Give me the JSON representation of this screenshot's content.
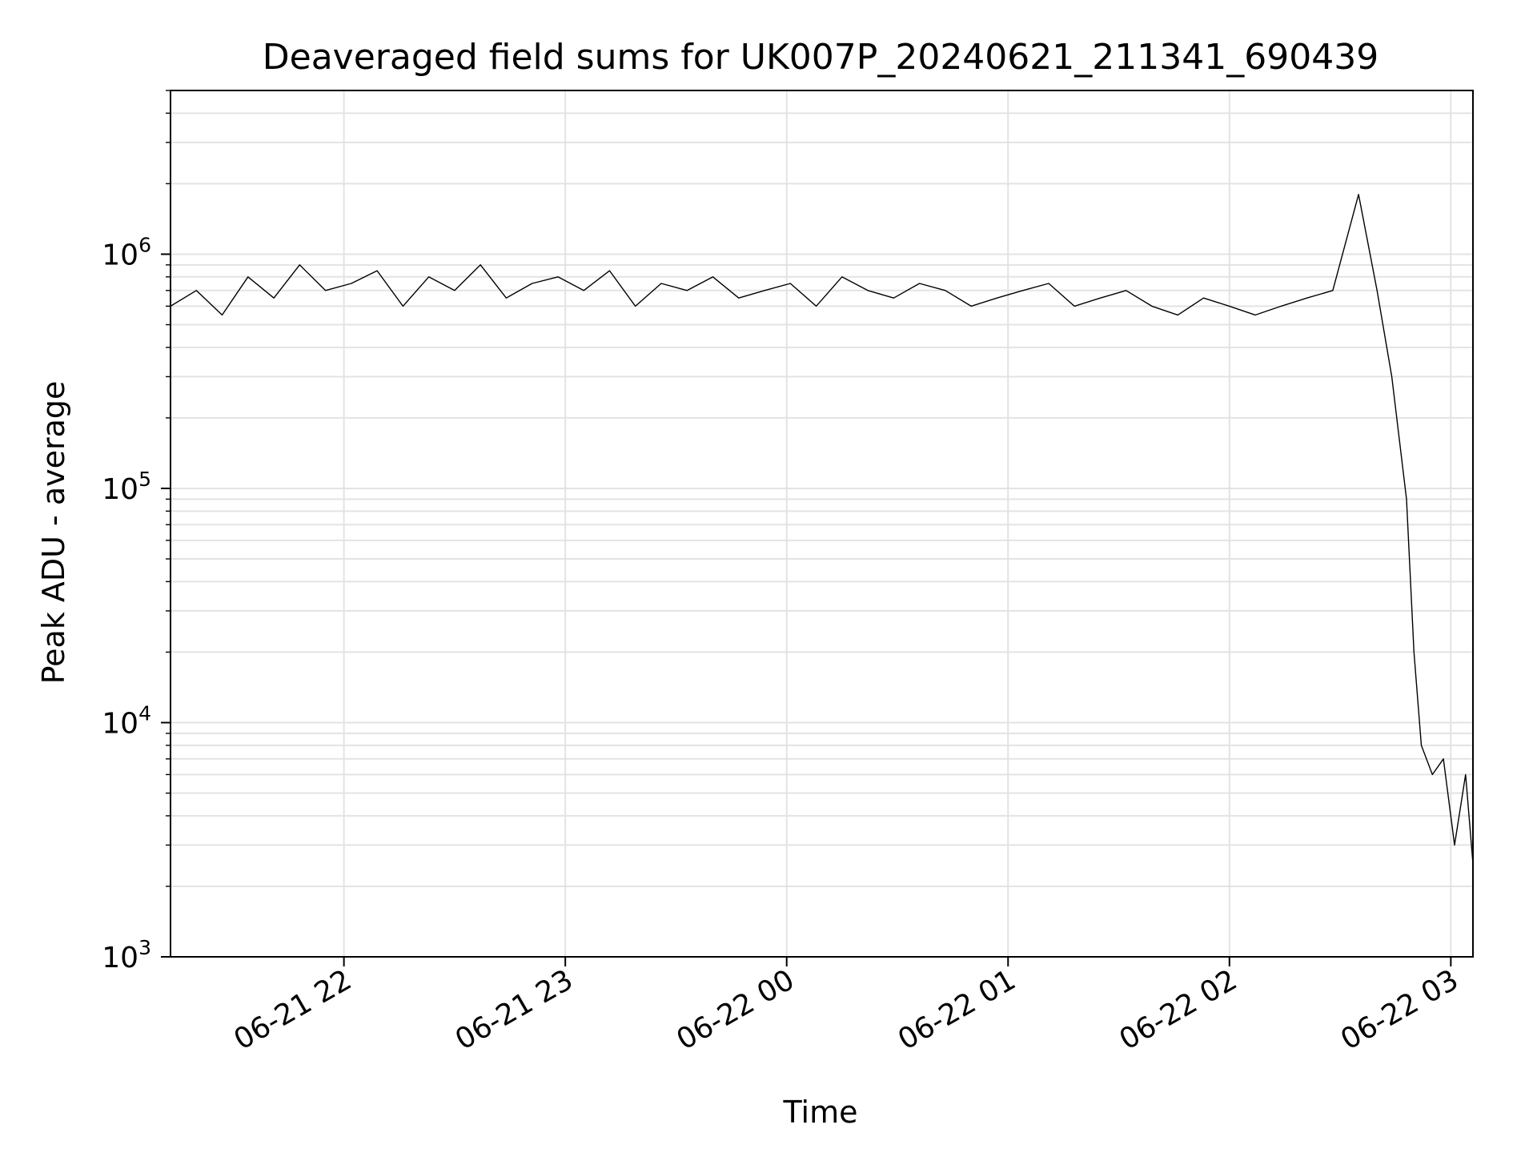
{
  "chart_data": {
    "type": "line",
    "title": "Deaveraged field sums for UK007P_20240621_211341_690439",
    "xlabel": "Time",
    "ylabel": "Peak ADU - average",
    "yscale": "log",
    "ylim": [
      1000,
      5000000
    ],
    "xlim": [
      "2024-06-21 21:13",
      "2024-06-22 03:06"
    ],
    "grid": true,
    "line_color": "#000000",
    "grid_color": "#e3e3e3",
    "x_ticks": [
      {
        "value": "2024-06-21 22:00",
        "label": "06-21 22"
      },
      {
        "value": "2024-06-21 23:00",
        "label": "06-21 23"
      },
      {
        "value": "2024-06-22 00:00",
        "label": "06-22 00"
      },
      {
        "value": "2024-06-22 01:00",
        "label": "06-22 01"
      },
      {
        "value": "2024-06-22 02:00",
        "label": "06-22 02"
      },
      {
        "value": "2024-06-22 03:00",
        "label": "06-22 03"
      }
    ],
    "y_ticks": [
      {
        "value": 1000,
        "base": "10",
        "exp": "3"
      },
      {
        "value": 10000,
        "base": "10",
        "exp": "4"
      },
      {
        "value": 100000,
        "base": "10",
        "exp": "5"
      },
      {
        "value": 1000000,
        "base": "10",
        "exp": "6"
      }
    ],
    "series": [
      {
        "x": [
          "2024-06-21 21:13",
          "2024-06-21 21:20",
          "2024-06-21 21:27",
          "2024-06-21 21:34",
          "2024-06-21 21:41",
          "2024-06-21 21:48",
          "2024-06-21 21:55",
          "2024-06-21 22:02",
          "2024-06-21 22:09",
          "2024-06-21 22:16",
          "2024-06-21 22:23",
          "2024-06-21 22:30",
          "2024-06-21 22:37",
          "2024-06-21 22:44",
          "2024-06-21 22:51",
          "2024-06-21 22:58",
          "2024-06-21 23:05",
          "2024-06-21 23:12",
          "2024-06-21 23:19",
          "2024-06-21 23:26",
          "2024-06-21 23:33",
          "2024-06-21 23:40",
          "2024-06-21 23:47",
          "2024-06-21 23:54",
          "2024-06-22 00:01",
          "2024-06-22 00:08",
          "2024-06-22 00:15",
          "2024-06-22 00:22",
          "2024-06-22 00:29",
          "2024-06-22 00:36",
          "2024-06-22 00:43",
          "2024-06-22 00:50",
          "2024-06-22 00:57",
          "2024-06-22 01:04",
          "2024-06-22 01:11",
          "2024-06-22 01:18",
          "2024-06-22 01:25",
          "2024-06-22 01:32",
          "2024-06-22 01:39",
          "2024-06-22 01:46",
          "2024-06-22 01:53",
          "2024-06-22 02:00",
          "2024-06-22 02:07",
          "2024-06-22 02:14",
          "2024-06-22 02:21",
          "2024-06-22 02:28",
          "2024-06-22 02:35",
          "2024-06-22 02:40",
          "2024-06-22 02:44",
          "2024-06-22 02:48",
          "2024-06-22 02:50",
          "2024-06-22 02:52",
          "2024-06-22 02:55",
          "2024-06-22 02:58",
          "2024-06-22 03:01",
          "2024-06-22 03:04",
          "2024-06-22 03:06"
        ],
        "values": [
          600000,
          700000,
          550000,
          800000,
          650000,
          900000,
          700000,
          750000,
          850000,
          600000,
          800000,
          700000,
          900000,
          650000,
          750000,
          800000,
          700000,
          850000,
          600000,
          750000,
          700000,
          800000,
          650000,
          700000,
          750000,
          600000,
          800000,
          700000,
          650000,
          750000,
          700000,
          600000,
          650000,
          700000,
          750000,
          600000,
          650000,
          700000,
          600000,
          550000,
          650000,
          600000,
          550000,
          600000,
          650000,
          700000,
          1800000,
          700000,
          300000,
          90000,
          20000,
          8000,
          6000,
          7000,
          3000,
          6000,
          2500
        ]
      }
    ]
  }
}
